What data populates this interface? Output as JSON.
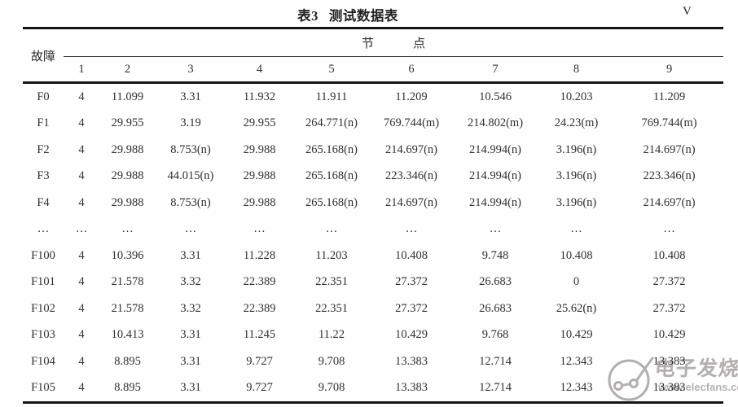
{
  "caption": {
    "table_no": "表3",
    "title": "测试数据表",
    "unit": "V"
  },
  "header": {
    "fault_label": "故障",
    "node_group_parts": [
      "节",
      "点"
    ],
    "columns": [
      "1",
      "2",
      "3",
      "4",
      "5",
      "6",
      "7",
      "8",
      "9"
    ]
  },
  "table": {
    "rows": [
      {
        "fault": "F0",
        "values": [
          "4",
          "11.099",
          "3.31",
          "11.932",
          "11.911",
          "11.209",
          "10.546",
          "10.203",
          "11.209"
        ]
      },
      {
        "fault": "F1",
        "values": [
          "4",
          "29.955",
          "3.19",
          "29.955",
          "264.771(n)",
          "769.744(m)",
          "214.802(m)",
          "24.23(m)",
          "769.744(m)"
        ]
      },
      {
        "fault": "F2",
        "values": [
          "4",
          "29.988",
          "8.753(n)",
          "29.988",
          "265.168(n)",
          "214.697(n)",
          "214.994(n)",
          "3.196(n)",
          "214.697(n)"
        ]
      },
      {
        "fault": "F3",
        "values": [
          "4",
          "29.988",
          "44.015(n)",
          "29.988",
          "265.168(n)",
          "223.346(n)",
          "214.994(n)",
          "3.196(n)",
          "223.346(n)"
        ]
      },
      {
        "fault": "F4",
        "values": [
          "4",
          "29.988",
          "8.753(n)",
          "29.988",
          "265.168(n)",
          "214.697(n)",
          "214.994(n)",
          "3.196(n)",
          "214.697(n)"
        ]
      },
      {
        "fault": "…",
        "values": [
          "…",
          "…",
          "…",
          "…",
          "…",
          "…",
          "…",
          "…",
          "…"
        ]
      },
      {
        "fault": "F100",
        "values": [
          "4",
          "10.396",
          "3.31",
          "11.228",
          "11.203",
          "10.408",
          "9.748",
          "10.408",
          "10.408"
        ]
      },
      {
        "fault": "F101",
        "values": [
          "4",
          "21.578",
          "3.32",
          "22.389",
          "22.351",
          "27.372",
          "26.683",
          "0",
          "27.372"
        ]
      },
      {
        "fault": "F102",
        "values": [
          "4",
          "21.578",
          "3.32",
          "22.389",
          "22.351",
          "27.372",
          "26.683",
          "25.62(n)",
          "27.372"
        ]
      },
      {
        "fault": "F103",
        "values": [
          "4",
          "10.413",
          "3.31",
          "11.245",
          "11.22",
          "10.429",
          "9.768",
          "10.429",
          "10.429"
        ]
      },
      {
        "fault": "F104",
        "values": [
          "4",
          "8.895",
          "3.31",
          "9.727",
          "9.708",
          "13.383",
          "12.714",
          "12.343",
          "13.383"
        ]
      },
      {
        "fault": "F105",
        "values": [
          "4",
          "8.895",
          "3.31",
          "9.727",
          "9.708",
          "13.383",
          "12.714",
          "12.343",
          "13.383"
        ]
      }
    ]
  },
  "watermark": {
    "brand": "电子发烧友",
    "url": "www.elecfans.com"
  },
  "colors": {
    "border": "#151515",
    "text": "#303030",
    "watermark": "#b4b0b0"
  }
}
